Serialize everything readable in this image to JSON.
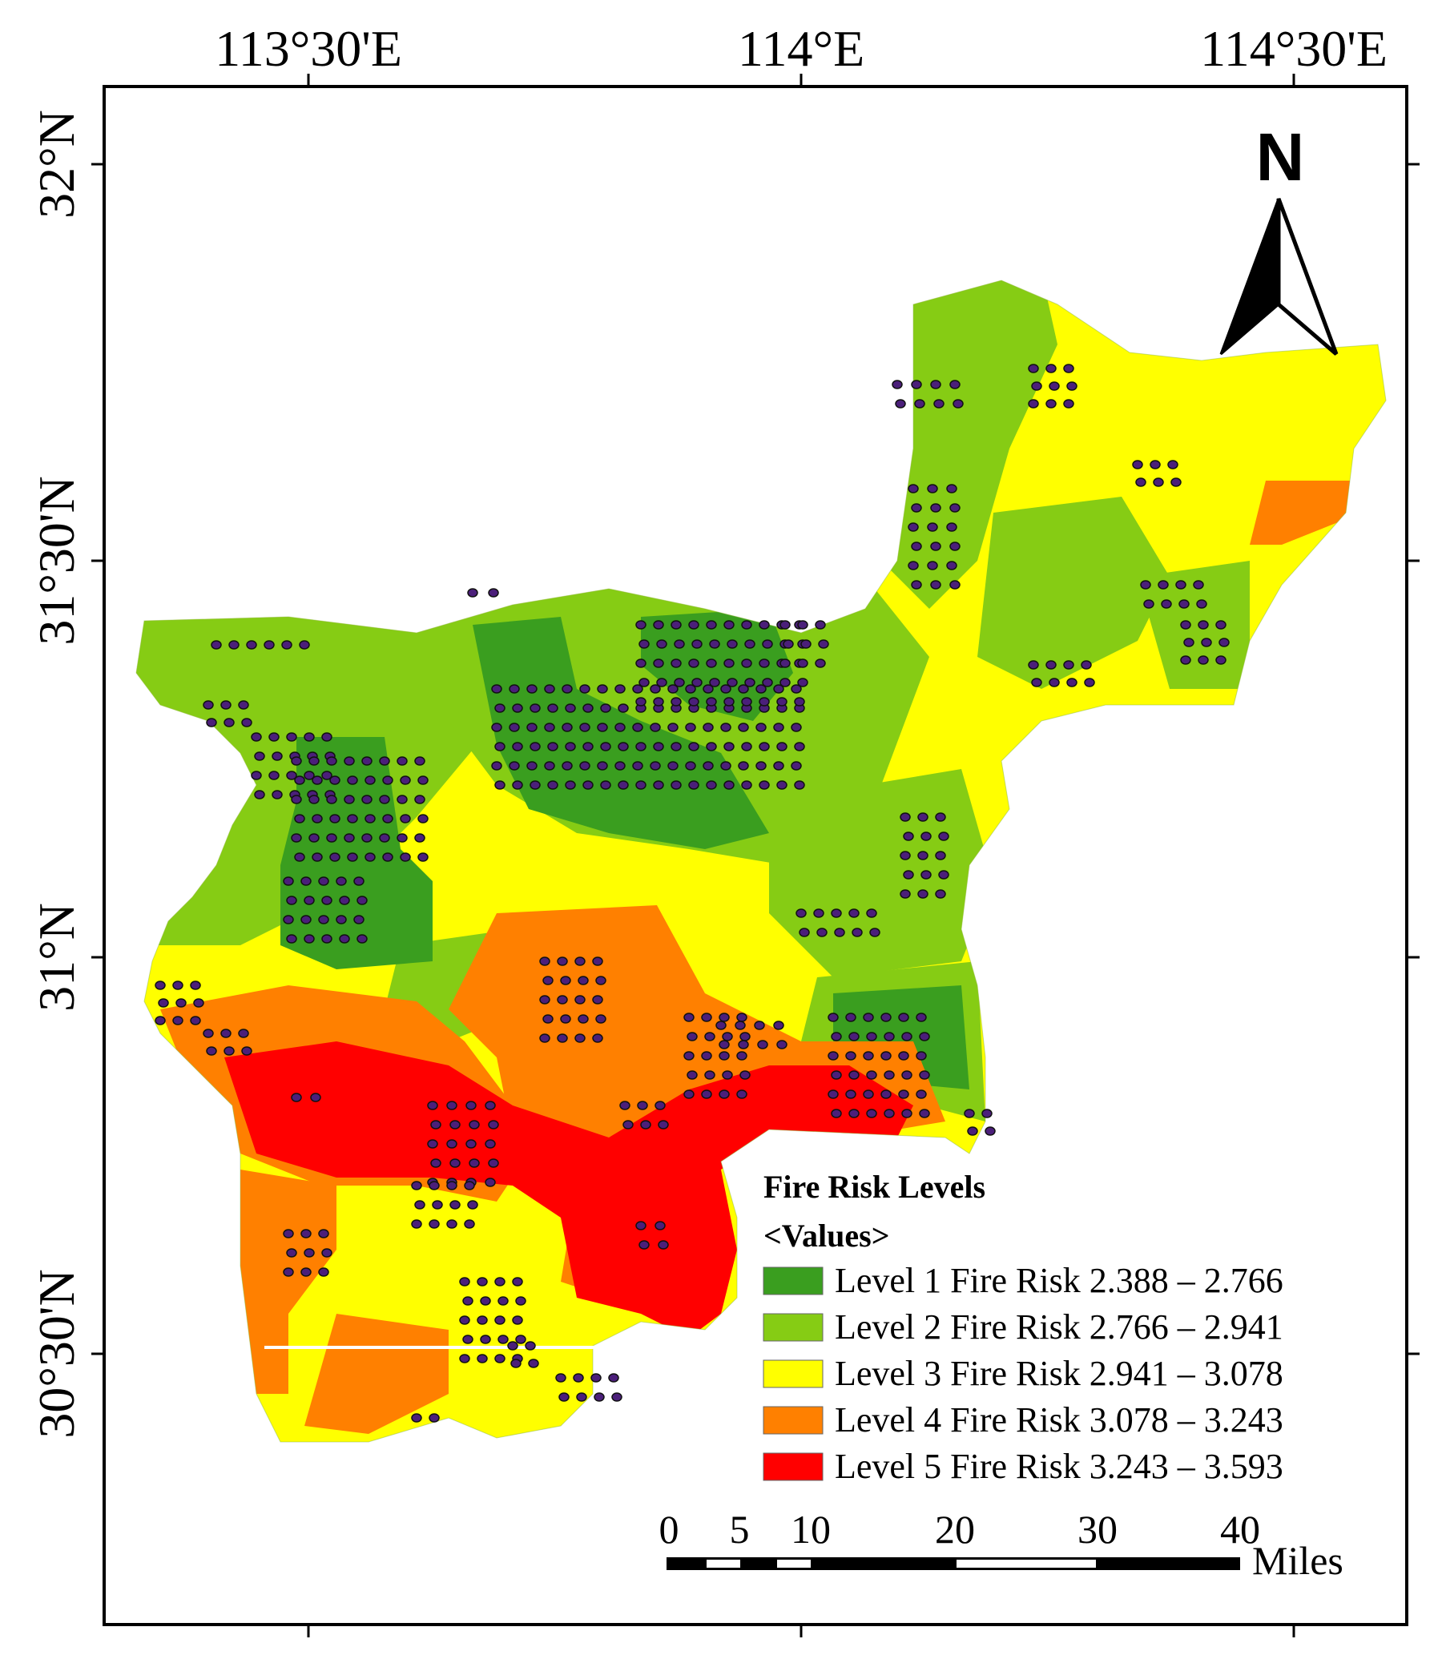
{
  "map": {
    "lon_labels": [
      "113°30'E",
      "114°E",
      "114°30'E"
    ],
    "lat_labels": [
      "32°N",
      "31°30'N",
      "31°N",
      "30°30'N"
    ],
    "north_label": "N"
  },
  "legend": {
    "title": "Fire Risk Levels",
    "subtitle": "<Values>",
    "items": [
      {
        "label": "Level 1 Fire Risk 2.388 – 2.766",
        "color": "#3a9e1f"
      },
      {
        "label": "Level 2 Fire Risk 2.766 – 2.941",
        "color": "#86cc14"
      },
      {
        "label": "Level 3 Fire Risk 2.941 – 3.078",
        "color": "#ffff00"
      },
      {
        "label": "Level 4 Fire Risk 3.078 – 3.243",
        "color": "#ff8000"
      },
      {
        "label": "Level 5 Fire Risk 3.243 – 3.593",
        "color": "#ff0000"
      }
    ]
  },
  "scale_bar": {
    "ticks": [
      "0",
      "5",
      "10",
      "20",
      "30",
      "40"
    ],
    "unit": "Miles"
  },
  "colors": {
    "point_fill": "#4b1f7a",
    "point_stroke": "#111111"
  }
}
